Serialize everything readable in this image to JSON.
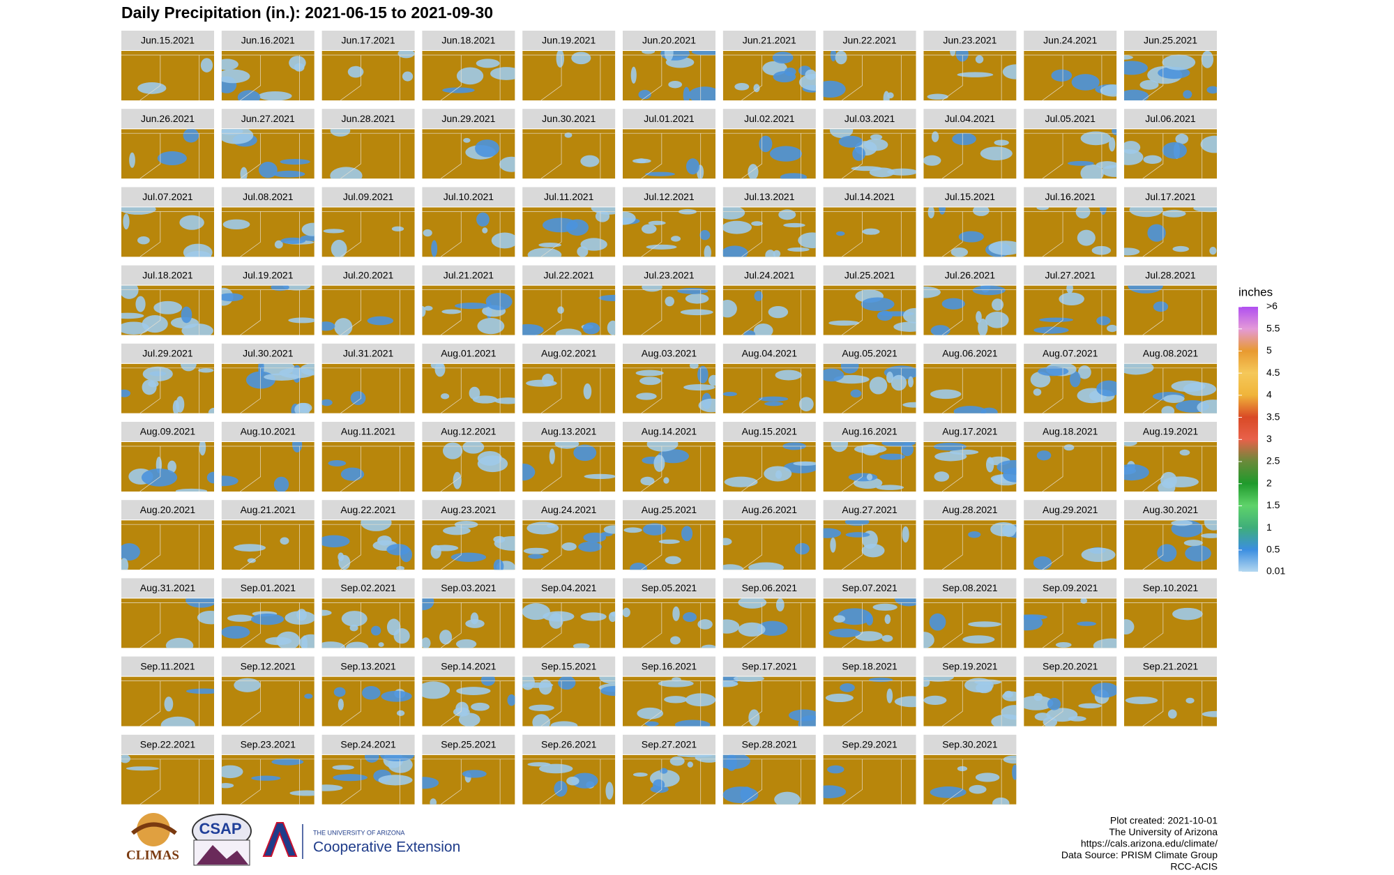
{
  "chart_data": {
    "type": "map_grid",
    "title": "Daily Precipitation (in.): 2021-06-15 to 2021-09-30",
    "map_color": "#b8860b",
    "panels": [
      "Jun.15.2021",
      "Jun.16.2021",
      "Jun.17.2021",
      "Jun.18.2021",
      "Jun.19.2021",
      "Jun.20.2021",
      "Jun.21.2021",
      "Jun.22.2021",
      "Jun.23.2021",
      "Jun.24.2021",
      "Jun.25.2021",
      "Jun.26.2021",
      "Jun.27.2021",
      "Jun.28.2021",
      "Jun.29.2021",
      "Jun.30.2021",
      "Jul.01.2021",
      "Jul.02.2021",
      "Jul.03.2021",
      "Jul.04.2021",
      "Jul.05.2021",
      "Jul.06.2021",
      "Jul.07.2021",
      "Jul.08.2021",
      "Jul.09.2021",
      "Jul.10.2021",
      "Jul.11.2021",
      "Jul.12.2021",
      "Jul.13.2021",
      "Jul.14.2021",
      "Jul.15.2021",
      "Jul.16.2021",
      "Jul.17.2021",
      "Jul.18.2021",
      "Jul.19.2021",
      "Jul.20.2021",
      "Jul.21.2021",
      "Jul.22.2021",
      "Jul.23.2021",
      "Jul.24.2021",
      "Jul.25.2021",
      "Jul.26.2021",
      "Jul.27.2021",
      "Jul.28.2021",
      "Jul.29.2021",
      "Jul.30.2021",
      "Jul.31.2021",
      "Aug.01.2021",
      "Aug.02.2021",
      "Aug.03.2021",
      "Aug.04.2021",
      "Aug.05.2021",
      "Aug.06.2021",
      "Aug.07.2021",
      "Aug.08.2021",
      "Aug.09.2021",
      "Aug.10.2021",
      "Aug.11.2021",
      "Aug.12.2021",
      "Aug.13.2021",
      "Aug.14.2021",
      "Aug.15.2021",
      "Aug.16.2021",
      "Aug.17.2021",
      "Aug.18.2021",
      "Aug.19.2021",
      "Aug.20.2021",
      "Aug.21.2021",
      "Aug.22.2021",
      "Aug.23.2021",
      "Aug.24.2021",
      "Aug.25.2021",
      "Aug.26.2021",
      "Aug.27.2021",
      "Aug.28.2021",
      "Aug.29.2021",
      "Aug.30.2021",
      "Aug.31.2021",
      "Sep.01.2021",
      "Sep.02.2021",
      "Sep.03.2021",
      "Sep.04.2021",
      "Sep.05.2021",
      "Sep.06.2021",
      "Sep.07.2021",
      "Sep.08.2021",
      "Sep.09.2021",
      "Sep.10.2021",
      "Sep.11.2021",
      "Sep.12.2021",
      "Sep.13.2021",
      "Sep.14.2021",
      "Sep.15.2021",
      "Sep.16.2021",
      "Sep.17.2021",
      "Sep.18.2021",
      "Sep.19.2021",
      "Sep.20.2021",
      "Sep.21.2021",
      "Sep.22.2021",
      "Sep.23.2021",
      "Sep.24.2021",
      "Sep.25.2021",
      "Sep.26.2021",
      "Sep.27.2021",
      "Sep.28.2021",
      "Sep.29.2021",
      "Sep.30.2021"
    ],
    "legend": {
      "title": "inches",
      "lim": [
        0.01,
        6
      ],
      "ticks": [
        {
          "value": 6,
          "label": ">6"
        },
        5.5,
        5,
        4.5,
        4,
        3.5,
        3,
        2.5,
        2,
        1.5,
        1,
        0.5,
        0.01
      ],
      "colors": [
        "#b3d7f0",
        "#3b8ee0",
        "#3fae7a",
        "#5fd36a",
        "#1f9a2c",
        "#6a8a3a",
        "#e8614a",
        "#d94a26",
        "#f0b43a",
        "#f5c85a",
        "#e89a30",
        "#e49ad8",
        "#b04ff0"
      ]
    }
  },
  "footer": {
    "lines": [
      "Plot created: 2021-10-01",
      "The University of Arizona",
      "https://cals.arizona.edu/climate/",
      "Data Source: PRISM Climate Group",
      "RCC-ACIS"
    ]
  },
  "logos": {
    "climas": "CLIMAS",
    "csap": "CSAP",
    "ua_small": "THE UNIVERSITY OF ARIZONA",
    "ua_main": "Cooperative Extension"
  }
}
